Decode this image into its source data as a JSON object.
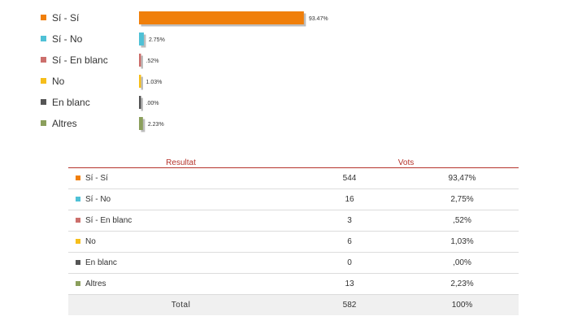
{
  "chart_data": {
    "type": "bar",
    "orientation": "horizontal",
    "categories": [
      "Sí - Sí",
      "Sí - No",
      "Sí - En blanc",
      "No",
      "En blanc",
      "Altres"
    ],
    "values": [
      93.47,
      2.75,
      0.52,
      1.03,
      0.0,
      2.23
    ],
    "value_labels": [
      "93.47%",
      "2.75%",
      ".52%",
      "1.03%",
      ".00%",
      "2.23%"
    ],
    "colors": [
      "#f07f0a",
      "#4fc1d6",
      "#cc6f6c",
      "#f6be1b",
      "#555555",
      "#8b9f5c"
    ],
    "xlim": [
      0,
      100
    ],
    "grid": false,
    "legend": "left"
  },
  "table": {
    "headers": {
      "result": "Resultat",
      "votes": "Vots"
    },
    "rows": [
      {
        "label": "Sí - Sí",
        "votes": "544",
        "percent": "93,47%",
        "color": "#f07f0a"
      },
      {
        "label": "Sí - No",
        "votes": "16",
        "percent": "2,75%",
        "color": "#4fc1d6"
      },
      {
        "label": "Sí - En blanc",
        "votes": "3",
        "percent": ",52%",
        "color": "#cc6f6c"
      },
      {
        "label": "No",
        "votes": "6",
        "percent": "1,03%",
        "color": "#f6be1b"
      },
      {
        "label": "En blanc",
        "votes": "0",
        "percent": ",00%",
        "color": "#555555"
      },
      {
        "label": "Altres",
        "votes": "13",
        "percent": "2,23%",
        "color": "#8b9f5c"
      }
    ],
    "total": {
      "label": "Total",
      "votes": "582",
      "percent": "100%"
    }
  }
}
